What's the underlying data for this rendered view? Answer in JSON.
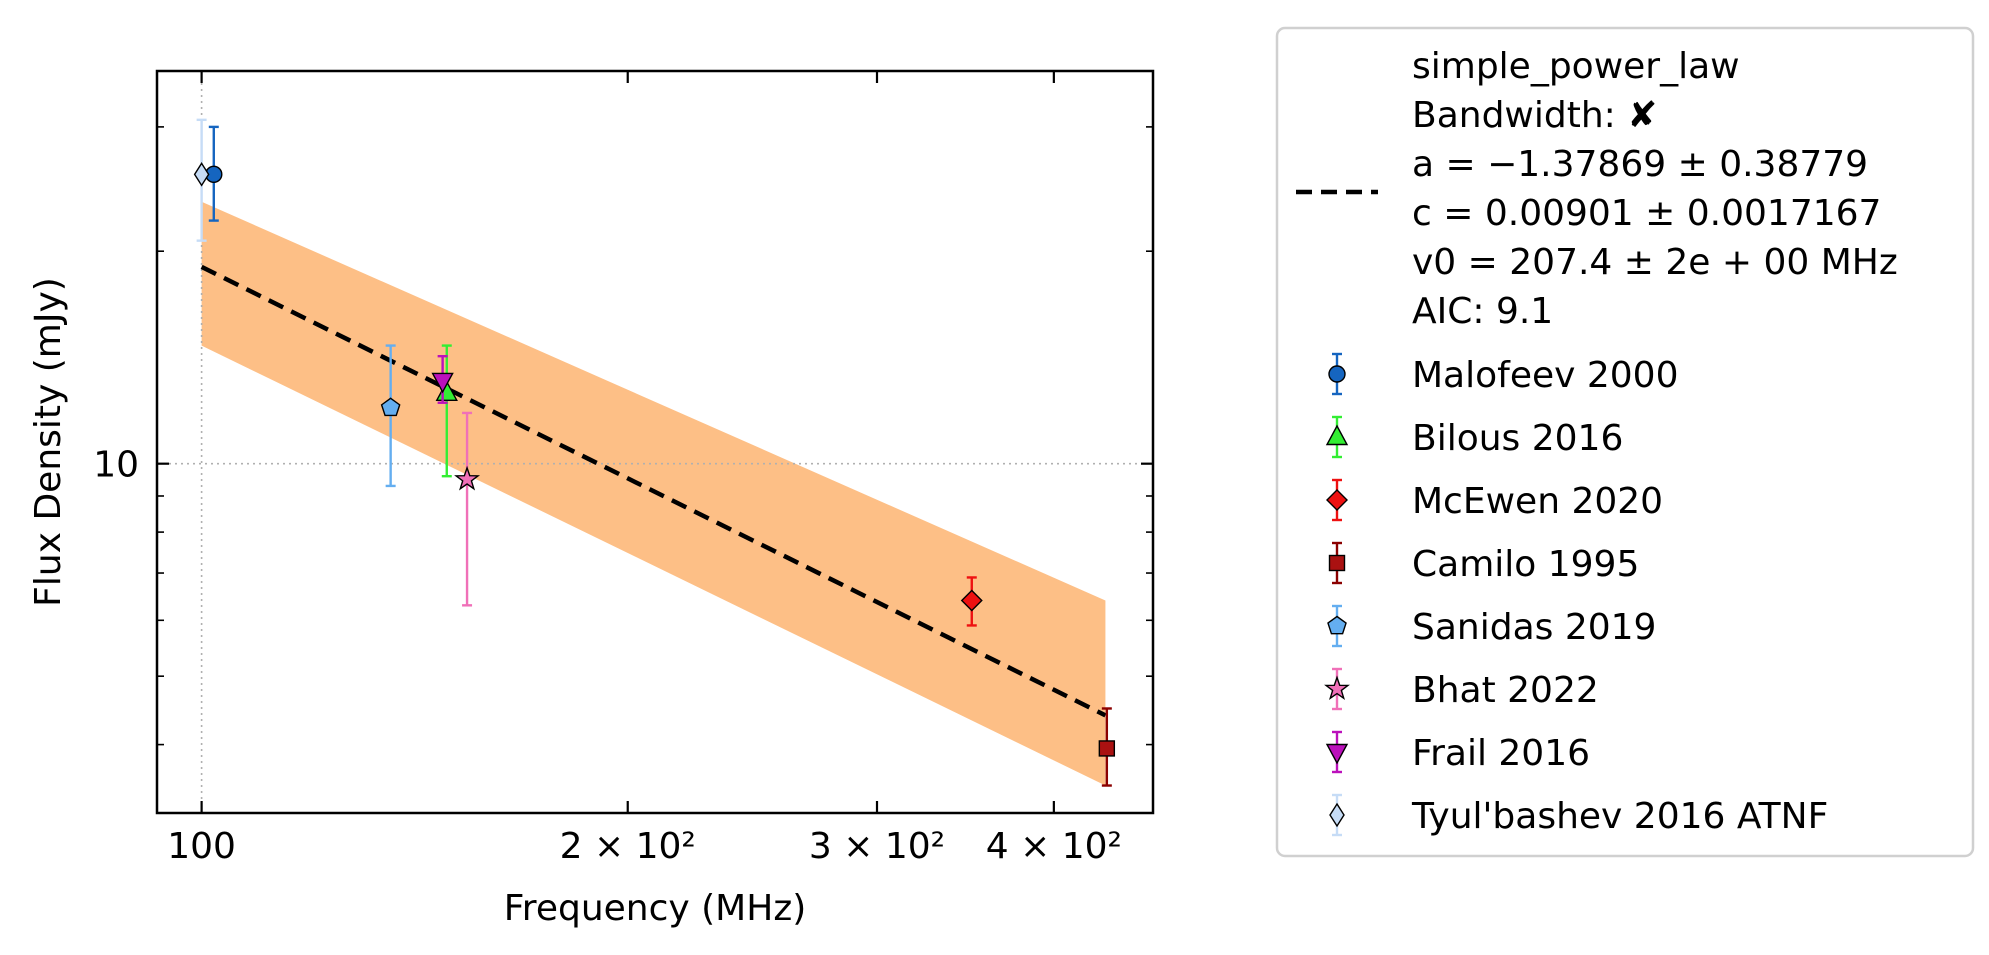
{
  "chart_data": {
    "type": "scatter",
    "xlabel": "Frequency (MHz)",
    "ylabel": "Flux Density (mJy)",
    "x_scale": "log",
    "y_scale": "log",
    "xlim": [
      93,
      470
    ],
    "ylim": [
      3.2,
      36
    ],
    "x_ticks": [
      {
        "value": 100,
        "label": "100"
      },
      {
        "value": 200,
        "label": "2 × 10²"
      },
      {
        "value": 300,
        "label": "3 × 10²"
      },
      {
        "value": 400,
        "label": "4 × 10²"
      }
    ],
    "y_ticks": [
      {
        "value": 10,
        "label": "10"
      }
    ],
    "grid": "dotted reference lines at x=100 and y=10",
    "legend_position": "outside-right",
    "fit": {
      "label_lines": [
        "simple_power_law",
        "Bandwidth: ✘",
        "a = −1.37869 ± 0.38779",
        "c = 0.00901 ± 0.0017167",
        "v0 = 207.4 ± 2e + 00 MHz",
        "AIC: 9.1"
      ],
      "a": -1.37869,
      "c": 0.00901,
      "v0": 207.4,
      "x_range": [
        100,
        435
      ],
      "color": "#000000",
      "band_color": "#fdbf86",
      "band_x": [
        100,
        435
      ],
      "band_lower": [
        14.7,
        3.5
      ],
      "band_upper": [
        23.5,
        6.4
      ],
      "line_y": [
        19.0,
        4.4
      ]
    },
    "series": [
      {
        "name": "Malofeev 2000",
        "marker": "circle",
        "color": "#1565c0",
        "ecolor": "#1565c0",
        "points": [
          {
            "x": 102,
            "y": 25.7,
            "yerr_low": 3.6,
            "yerr_high": 4.3
          }
        ]
      },
      {
        "name": "Bilous 2016",
        "marker": "triangle-up",
        "color": "#33ee33",
        "ecolor": "#33ee33",
        "points": [
          {
            "x": 149,
            "y": 12.6,
            "yerr_low": 3.0,
            "yerr_high": 2.1
          }
        ]
      },
      {
        "name": "McEwen 2020",
        "marker": "diamond",
        "color": "#ee1111",
        "ecolor": "#ee1111",
        "points": [
          {
            "x": 350,
            "y": 6.4,
            "yerr_low": 0.5,
            "yerr_high": 0.5
          }
        ]
      },
      {
        "name": "Camilo 1995",
        "marker": "square",
        "color": "#aa1111",
        "ecolor": "#8b0000",
        "points": [
          {
            "x": 436,
            "y": 3.95,
            "yerr_low": 0.45,
            "yerr_high": 0.55
          }
        ]
      },
      {
        "name": "Sanidas 2019",
        "marker": "pentagon",
        "color": "#64aef0",
        "ecolor": "#64aef0",
        "points": [
          {
            "x": 136,
            "y": 12.0,
            "yerr_low": 2.7,
            "yerr_high": 2.7
          }
        ]
      },
      {
        "name": "Bhat 2022",
        "marker": "star",
        "color": "#f070b8",
        "ecolor": "#f070b8",
        "points": [
          {
            "x": 154,
            "y": 9.5,
            "yerr_low": 3.2,
            "yerr_high": 2.3
          }
        ]
      },
      {
        "name": "Frail 2016",
        "marker": "triangle-down",
        "color": "#bb11bb",
        "ecolor": "#bb11bb",
        "points": [
          {
            "x": 148,
            "y": 13.1,
            "yerr_low": 0.9,
            "yerr_high": 1.1
          }
        ]
      },
      {
        "name": "Tyul'bashev 2016 ATNF",
        "marker": "thin-diamond",
        "color": "#c6dcf6",
        "ecolor": "#c6dcf6",
        "points": [
          {
            "x": 100,
            "y": 25.7,
            "yerr_low": 5.0,
            "yerr_high": 5.0
          }
        ]
      }
    ]
  }
}
